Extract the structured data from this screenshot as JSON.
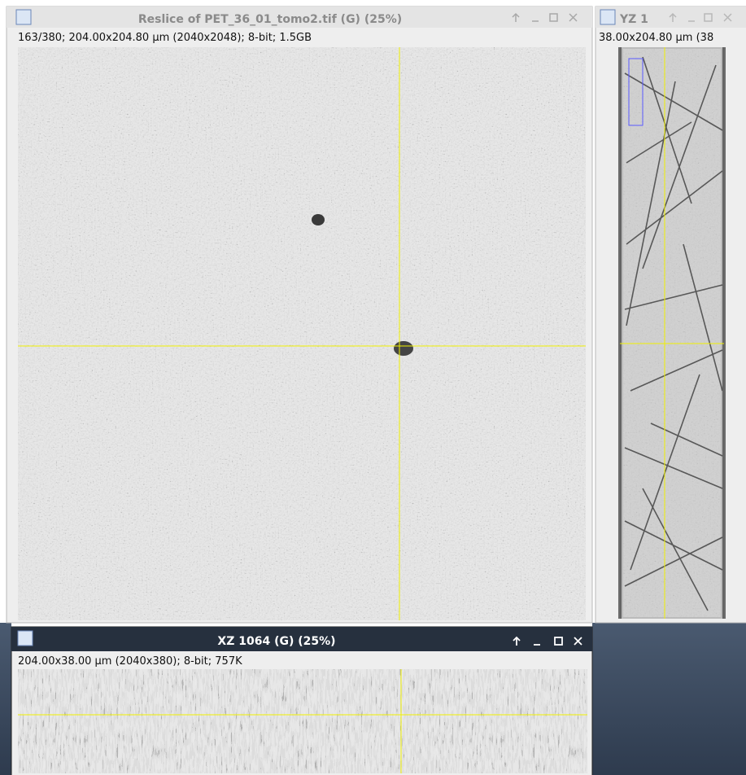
{
  "windows": [
    {
      "title": "Reslice of PET_36_01_tomo2.tif (G) (25%)",
      "info": "163/380; 204.00x204.80 µm (2040x2048); 8-bit; 1.5GB"
    },
    {
      "title": "YZ 1",
      "info": "38.00x204.80 µm (38"
    },
    {
      "title": "XZ 1064 (G) (25%)",
      "info": "204.00x38.00 µm (2040x380); 8-bit; 757K"
    }
  ]
}
